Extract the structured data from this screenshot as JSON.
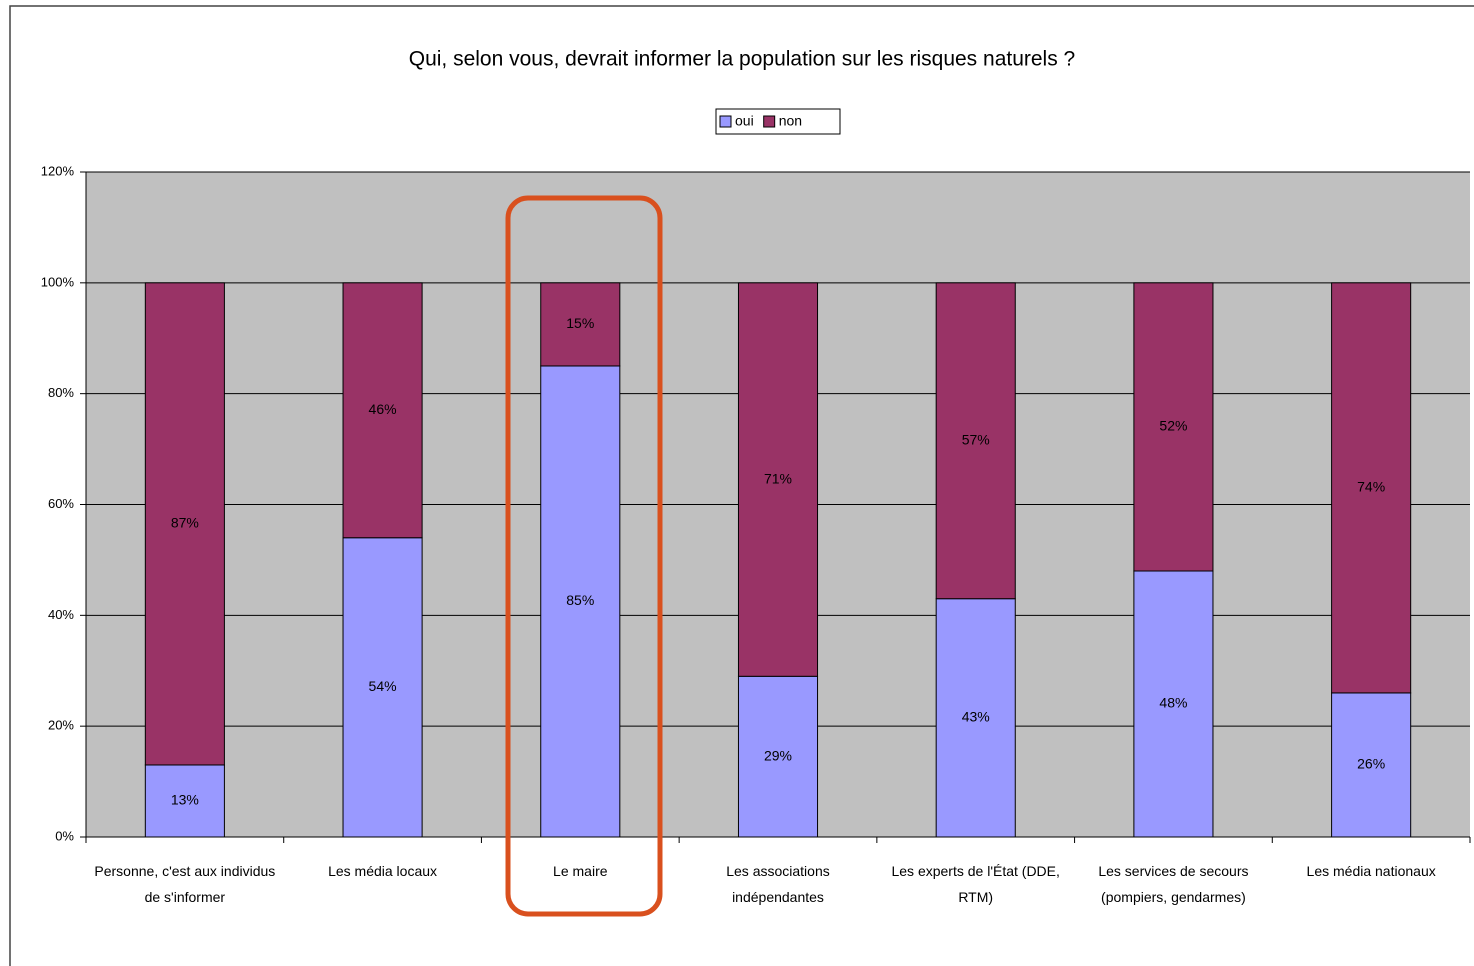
{
  "chart_data": {
    "type": "stacked_bar",
    "title": "Qui, selon vous, devrait informer la population sur les risques naturels ?",
    "categories": [
      "Personne, c'est aux individus de s'informer",
      "Les média locaux",
      "Le maire",
      "Les associations indépendantes",
      "Les experts de l'État (DDE, RTM)",
      "Les services de secours (pompiers, gendarmes)",
      "Les média nationaux"
    ],
    "series": [
      {
        "name": "oui",
        "color": "#9999ff",
        "values": [
          13,
          54,
          85,
          29,
          43,
          48,
          26
        ],
        "value_labels": [
          "13%",
          "54%",
          "85%",
          "29%",
          "43%",
          "48%",
          "26%"
        ]
      },
      {
        "name": "non",
        "color": "#993366",
        "values": [
          87,
          46,
          15,
          71,
          57,
          52,
          74
        ],
        "value_labels": [
          "87%",
          "46%",
          "15%",
          "71%",
          "57%",
          "52%",
          "74%"
        ]
      }
    ],
    "ylim": [
      0,
      120
    ],
    "yticks": [
      {
        "value": 0,
        "label": "0%"
      },
      {
        "value": 20,
        "label": "20%"
      },
      {
        "value": 40,
        "label": "40%"
      },
      {
        "value": 60,
        "label": "60%"
      },
      {
        "value": 80,
        "label": "80%"
      },
      {
        "value": 100,
        "label": "100%"
      },
      {
        "value": 120,
        "label": "120%"
      }
    ],
    "grid": true,
    "plot_background": "#c0c0c0",
    "legend": "top"
  }
}
